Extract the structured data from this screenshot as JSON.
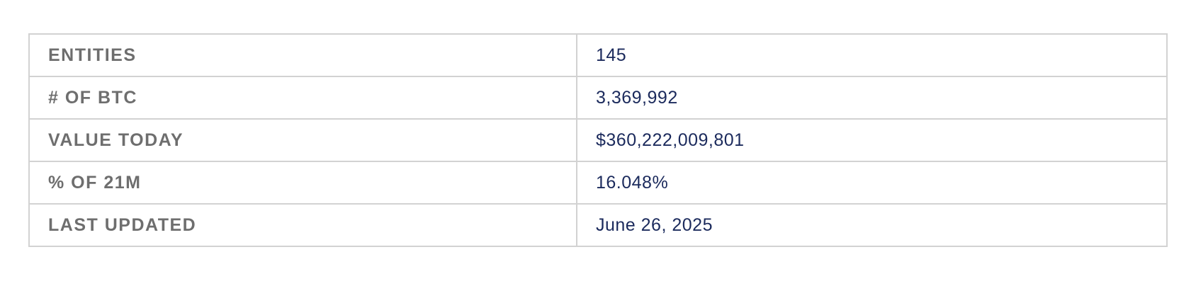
{
  "stats": {
    "rows": [
      {
        "label": "ENTITIES",
        "value": "145"
      },
      {
        "label": "# OF BTC",
        "value": "3,369,992"
      },
      {
        "label": "VALUE TODAY",
        "value": "$360,222,009,801"
      },
      {
        "label": "% OF 21M",
        "value": "16.048%"
      },
      {
        "label": "LAST UPDATED",
        "value": "June 26, 2025"
      }
    ]
  },
  "colors": {
    "label_text": "#6e6e6e",
    "value_text": "#1b2a5c",
    "border": "#d2d2d2"
  }
}
